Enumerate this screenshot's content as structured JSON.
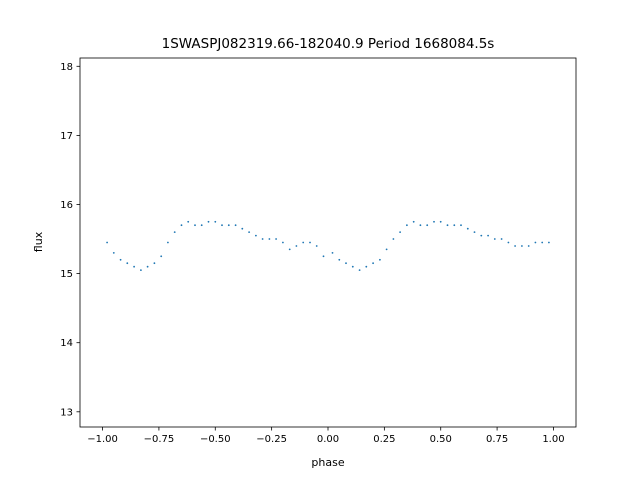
{
  "chart_data": {
    "type": "scatter",
    "title": "1SWASPJ082319.66-182040.9 Period 1668084.5s",
    "xlabel": "phase",
    "ylabel": "flux",
    "xlim": [
      -1.1,
      1.1
    ],
    "ylim": [
      12.78,
      18.12
    ],
    "xticks": [
      -1.0,
      -0.75,
      -0.5,
      -0.25,
      0.0,
      0.25,
      0.5,
      0.75,
      1.0
    ],
    "xtick_labels": [
      "−1.00",
      "−0.75",
      "−0.50",
      "−0.25",
      "0.00",
      "0.25",
      "0.50",
      "0.75",
      "1.00"
    ],
    "yticks": [
      13,
      14,
      15,
      16,
      17,
      18
    ],
    "ytick_labels": [
      "13",
      "14",
      "15",
      "16",
      "17",
      "18"
    ],
    "grid": false,
    "legend": "none",
    "marker_color": "#1f77b4",
    "series": [
      {
        "x": [
          -0.98,
          -0.95,
          -0.92,
          -0.89,
          -0.86,
          -0.83,
          -0.8,
          -0.77,
          -0.74,
          -0.71,
          -0.68,
          -0.65,
          -0.62,
          -0.59,
          -0.56,
          -0.53,
          -0.5,
          -0.47,
          -0.44,
          -0.41,
          -0.38,
          -0.35,
          -0.32,
          -0.29,
          -0.26,
          -0.23,
          -0.2,
          -0.17,
          -0.14,
          -0.11,
          -0.08,
          -0.05,
          -0.02,
          0.02,
          0.05,
          0.08,
          0.11,
          0.14,
          0.17,
          0.2,
          0.23,
          0.26,
          0.29,
          0.32,
          0.35,
          0.38,
          0.41,
          0.44,
          0.47,
          0.5,
          0.53,
          0.56,
          0.59,
          0.62,
          0.65,
          0.68,
          0.71,
          0.74,
          0.77,
          0.8,
          0.83,
          0.86,
          0.89,
          0.92,
          0.95,
          0.98
        ],
        "y": [
          15.45,
          15.3,
          15.2,
          15.15,
          15.1,
          15.05,
          15.1,
          15.15,
          15.25,
          15.45,
          15.6,
          15.7,
          15.75,
          15.7,
          15.7,
          15.75,
          15.75,
          15.7,
          15.7,
          15.7,
          15.65,
          15.6,
          15.55,
          15.5,
          15.5,
          15.5,
          15.45,
          15.35,
          15.4,
          15.45,
          15.45,
          15.4,
          15.25,
          15.3,
          15.2,
          15.15,
          15.1,
          15.05,
          15.1,
          15.15,
          15.2,
          15.35,
          15.5,
          15.6,
          15.7,
          15.75,
          15.7,
          15.7,
          15.75,
          15.75,
          15.7,
          15.7,
          15.7,
          15.65,
          15.6,
          15.55,
          15.55,
          15.5,
          15.5,
          15.45,
          15.4,
          15.4,
          15.4,
          15.45,
          15.45,
          15.45
        ]
      }
    ]
  }
}
